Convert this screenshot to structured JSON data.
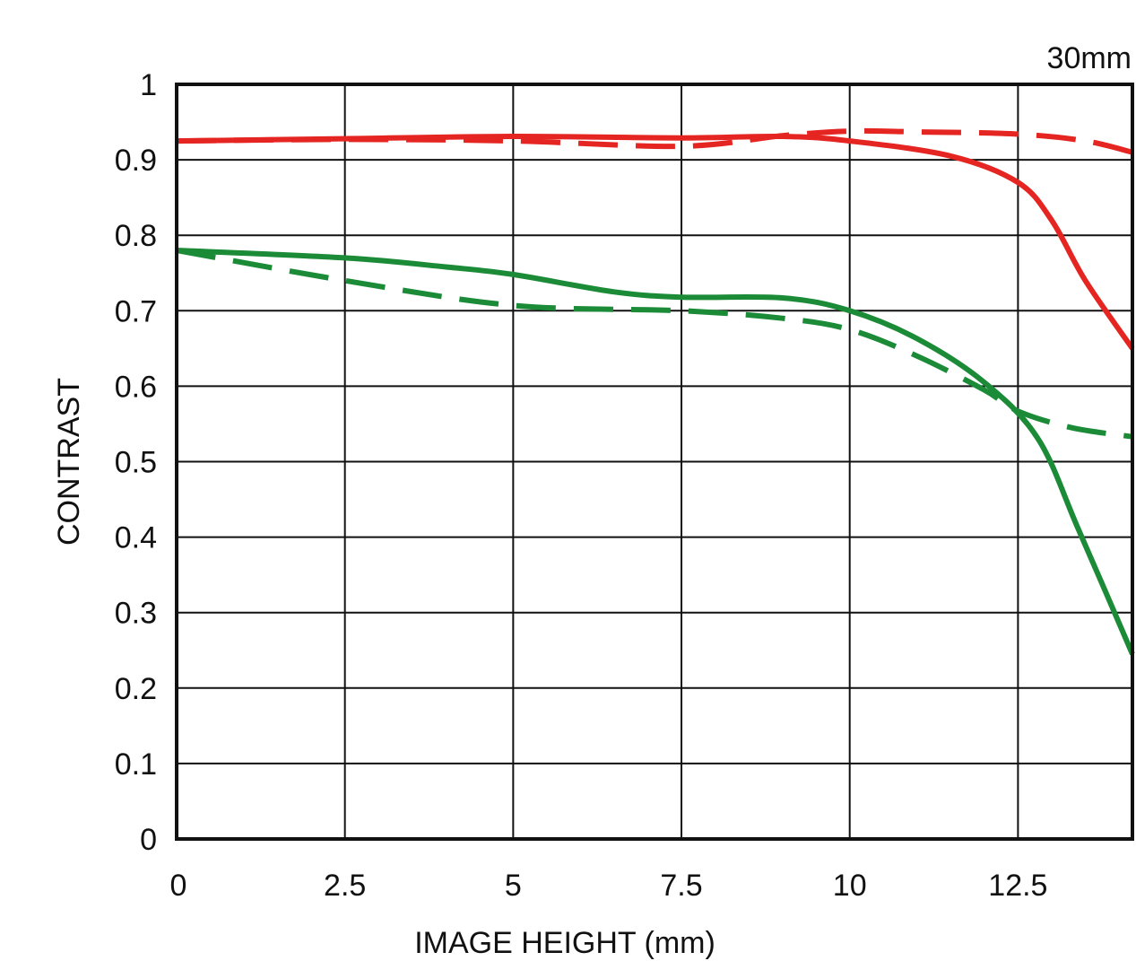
{
  "chart_data": {
    "type": "line",
    "title": "30mm",
    "xlabel": "IMAGE HEIGHT (mm)",
    "ylabel": "CONTRAST",
    "xlim": [
      0,
      14.2
    ],
    "ylim": [
      0,
      1
    ],
    "x_ticks": [
      0,
      2.5,
      5,
      7.5,
      10,
      12.5
    ],
    "x_tick_labels": [
      "0",
      "2.5",
      "5",
      "7.5",
      "10",
      "12.5"
    ],
    "y_ticks": [
      0,
      0.1,
      0.2,
      0.3,
      0.4,
      0.5,
      0.6,
      0.7,
      0.8,
      0.9,
      1
    ],
    "y_tick_labels": [
      "0",
      "0.1",
      "0.2",
      "0.3",
      "0.4",
      "0.5",
      "0.6",
      "0.7",
      "0.8",
      "0.9",
      "1"
    ],
    "grid": true,
    "series": [
      {
        "color": "#e52521",
        "dash": "solid",
        "points": [
          [
            0,
            0.925
          ],
          [
            2.5,
            0.928
          ],
          [
            5,
            0.931
          ],
          [
            7.5,
            0.929
          ],
          [
            9,
            0.931
          ],
          [
            10,
            0.925
          ],
          [
            11.5,
            0.905
          ],
          [
            12.5,
            0.87
          ],
          [
            13,
            0.82
          ],
          [
            13.5,
            0.74
          ],
          [
            14.2,
            0.65
          ]
        ]
      },
      {
        "color": "#e52521",
        "dash": "dashed",
        "points": [
          [
            0,
            0.925
          ],
          [
            2.5,
            0.927
          ],
          [
            5,
            0.925
          ],
          [
            7.5,
            0.918
          ],
          [
            9,
            0.932
          ],
          [
            10,
            0.938
          ],
          [
            11,
            0.937
          ],
          [
            12.5,
            0.934
          ],
          [
            13.5,
            0.925
          ],
          [
            14.2,
            0.91
          ]
        ]
      },
      {
        "color": "#1b8b37",
        "dash": "solid",
        "points": [
          [
            0,
            0.78
          ],
          [
            2.5,
            0.77
          ],
          [
            4,
            0.758
          ],
          [
            5,
            0.748
          ],
          [
            6.5,
            0.725
          ],
          [
            7.5,
            0.718
          ],
          [
            9,
            0.717
          ],
          [
            10,
            0.7
          ],
          [
            11,
            0.663
          ],
          [
            12,
            0.605
          ],
          [
            12.8,
            0.53
          ],
          [
            13.4,
            0.41
          ],
          [
            14.2,
            0.245
          ]
        ]
      },
      {
        "color": "#1b8b37",
        "dash": "dashed",
        "points": [
          [
            0,
            0.78
          ],
          [
            2.5,
            0.74
          ],
          [
            5,
            0.707
          ],
          [
            7.5,
            0.7
          ],
          [
            9,
            0.69
          ],
          [
            10,
            0.675
          ],
          [
            11,
            0.64
          ],
          [
            12,
            0.595
          ],
          [
            12.5,
            0.567
          ],
          [
            13.3,
            0.545
          ],
          [
            14.2,
            0.533
          ]
        ]
      }
    ]
  }
}
